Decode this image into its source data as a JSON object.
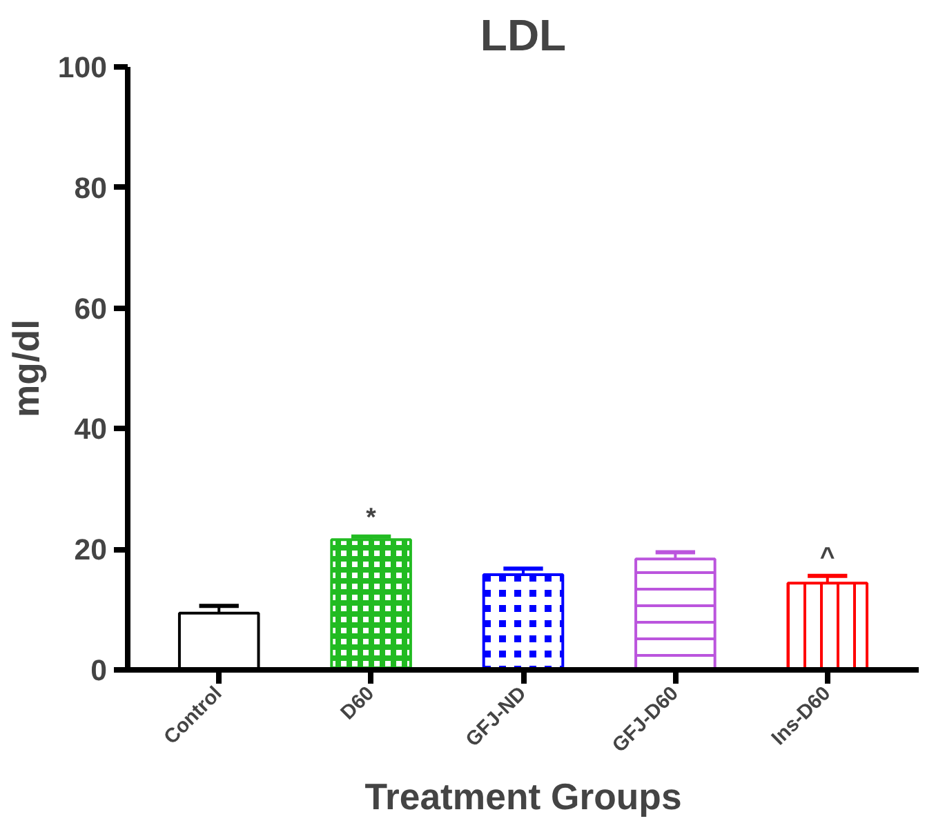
{
  "chart_data": {
    "type": "bar",
    "title": "LDL",
    "xlabel": "Treatment Groups",
    "ylabel": "mg/dl",
    "categories": [
      "Control",
      "D60",
      "GFJ-ND",
      "GFJ-D60",
      "Ins-D60"
    ],
    "values": [
      9.4,
      21.6,
      15.8,
      18.4,
      14.4
    ],
    "errors": [
      1.2,
      0.5,
      1.0,
      1.1,
      1.2
    ],
    "colors": [
      "#000000",
      "#22bb22",
      "#0000ff",
      "#bb55dd",
      "#ff0000"
    ],
    "ylim": [
      0,
      100
    ],
    "yticks": [
      0,
      20,
      40,
      60,
      80,
      100
    ],
    "grid": false,
    "annotations": [
      {
        "text": "*",
        "x": "D60",
        "y": 22.1
      },
      {
        "text": "^",
        "x": "Ins-D60",
        "y": 15.6
      }
    ]
  }
}
